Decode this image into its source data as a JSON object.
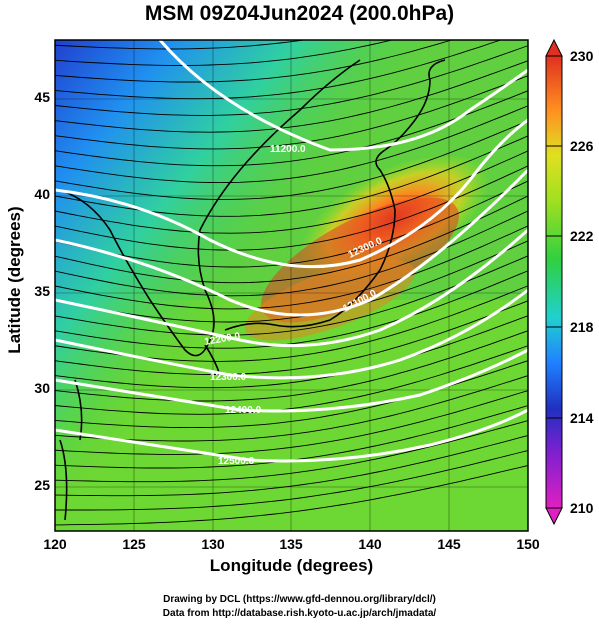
{
  "title": "MSM 09Z04Jun2024 (200.0hPa)",
  "axes": {
    "xlabel": "Longitude (degrees)",
    "ylabel": "Latitude  (degrees)",
    "xlim": [
      120,
      150
    ],
    "ylim": [
      22.5,
      48
    ],
    "xticks": [
      "120",
      "125",
      "130",
      "135",
      "140",
      "145",
      "150"
    ],
    "yticks": [
      "25",
      "30",
      "35",
      "40",
      "45"
    ]
  },
  "colorbar": {
    "ticks": [
      "230",
      "226",
      "222",
      "218",
      "214",
      "210"
    ],
    "range": [
      210,
      230
    ],
    "colors": [
      "#e020c0",
      "#2030c0",
      "#20a0ff",
      "#20d0b0",
      "#30d040",
      "#a0e020",
      "#e0e020",
      "#ff9020",
      "#e03020"
    ]
  },
  "contours": [
    {
      "label": "11200.0"
    },
    {
      "label": "12300.0"
    },
    {
      "label": "12100.0"
    },
    {
      "label": "12200.0"
    },
    {
      "label": "12300.0"
    },
    {
      "label": "12400.0"
    },
    {
      "label": "12500.0"
    }
  ],
  "credits": {
    "line1": "Drawing by DCL (https://www.gfd-dennou.org/library/dcl/)",
    "line2": "Data from http://database.rish.kyoto-u.ac.jp/arch/jmadata/"
  }
}
